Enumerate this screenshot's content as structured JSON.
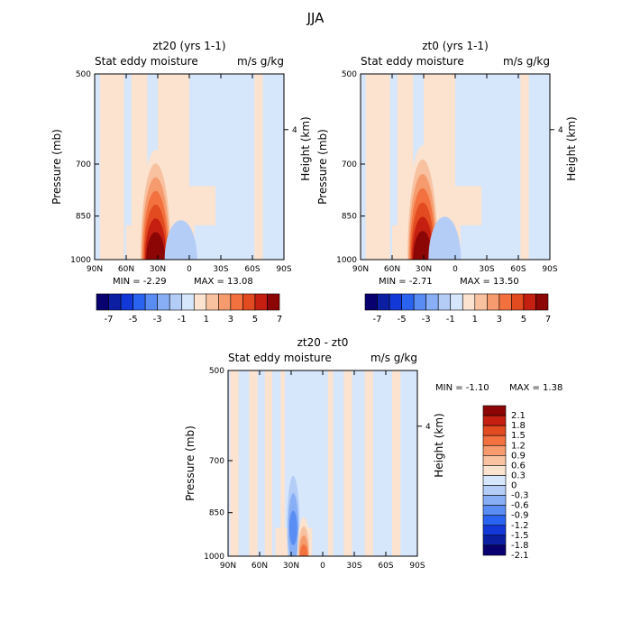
{
  "figure_title": "JJA",
  "chart_data": [
    {
      "type": "heatmap",
      "title": "zt20 (yrs 1-1)",
      "variable": "Stat eddy moisture",
      "units": "m/s g/kg",
      "xlabel": "",
      "ylabel": "Pressure (mb)",
      "y2label": "Height (km)",
      "x_ticks": [
        "90N",
        "60N",
        "30N",
        "0",
        "30S",
        "60S",
        "90S"
      ],
      "x_range": [
        90,
        -90
      ],
      "y_ticks": [
        "500",
        "700",
        "850",
        "1000"
      ],
      "y_tick_values": [
        500,
        700,
        850,
        1000
      ],
      "y_range": [
        500,
        1000
      ],
      "y_scale": "log",
      "y2_ticks": [
        "4"
      ],
      "min_label": "MIN = -2.29",
      "max_label": "MAX = 13.08",
      "min": -2.29,
      "max": 13.08,
      "colorbar_labels": [
        "-7",
        "-5",
        "-3",
        "-1",
        "1",
        "3",
        "5",
        "7"
      ],
      "colorbar_orientation": "horizontal",
      "features": [
        {
          "lat": 32,
          "p_top": 700,
          "p_bottom": 1000,
          "value": 7.5,
          "note": "strong positive maximum near surface"
        },
        {
          "lat": 8,
          "p_top": 880,
          "p_bottom": 1000,
          "value": -1.2,
          "note": "weak negative near equator"
        }
      ]
    },
    {
      "type": "heatmap",
      "title": "zt0 (yrs 1-1)",
      "variable": "Stat eddy moisture",
      "units": "m/s g/kg",
      "xlabel": "",
      "ylabel": "Pressure (mb)",
      "y2label": "Height (km)",
      "x_ticks": [
        "90N",
        "60N",
        "30N",
        "0",
        "30S",
        "60S",
        "90S"
      ],
      "x_range": [
        90,
        -90
      ],
      "y_ticks": [
        "500",
        "700",
        "850",
        "1000"
      ],
      "y_tick_values": [
        500,
        700,
        850,
        1000
      ],
      "y_range": [
        500,
        1000
      ],
      "y_scale": "log",
      "y2_ticks": [
        "4"
      ],
      "min_label": "MIN = -2.71",
      "max_label": "MAX = 13.50",
      "min": -2.71,
      "max": 13.5,
      "colorbar_labels": [
        "-7",
        "-5",
        "-3",
        "-1",
        "1",
        "3",
        "5",
        "7"
      ],
      "colorbar_orientation": "horizontal",
      "features": [
        {
          "lat": 31,
          "p_top": 690,
          "p_bottom": 1000,
          "value": 7.5,
          "note": "strong positive maximum near surface"
        },
        {
          "lat": 10,
          "p_top": 870,
          "p_bottom": 1000,
          "value": -1.4,
          "note": "weak negative near equator"
        }
      ]
    },
    {
      "type": "heatmap",
      "title": "zt20 - zt0",
      "variable": "Stat eddy moisture",
      "units": "m/s g/kg",
      "xlabel": "",
      "ylabel": "Pressure (mb)",
      "y2label": "Height (km)",
      "x_ticks": [
        "90N",
        "60N",
        "30N",
        "0",
        "30S",
        "60S",
        "90S"
      ],
      "x_range": [
        90,
        -90
      ],
      "y_ticks": [
        "500",
        "700",
        "850",
        "1000"
      ],
      "y_tick_values": [
        500,
        700,
        850,
        1000
      ],
      "y_range": [
        500,
        1000
      ],
      "y_scale": "log",
      "y2_ticks": [
        "4"
      ],
      "min_label": "MIN =  -1.10",
      "max_label": "MAX =   1.38",
      "min": -1.1,
      "max": 1.38,
      "colorbar_labels": [
        "2.1",
        "1.8",
        "1.5",
        "1.2",
        "0.9",
        "0.6",
        "0.3",
        "0",
        "-0.3",
        "-0.6",
        "-0.9",
        "-1.2",
        "-1.5",
        "-1.8",
        "-2.1"
      ],
      "colorbar_orientation": "vertical",
      "features": [
        {
          "lat": 28,
          "p_top": 760,
          "p_bottom": 900,
          "value": -1.0,
          "note": "negative column near 30N"
        },
        {
          "lat": 18,
          "p_top": 880,
          "p_bottom": 990,
          "value": 1.2,
          "note": "positive anomaly near surface"
        }
      ]
    }
  ],
  "colors": {
    "background": "#ffffff",
    "colorbar_fills": [
      "#08006e",
      "#0c1fa3",
      "#1238d8",
      "#2a63f0",
      "#5a8df4",
      "#88aff6",
      "#b4cdf7",
      "#d6e6fb",
      "#fbe3d0",
      "#f8c2a0",
      "#f59b6e",
      "#f2713f",
      "#e24a20",
      "#c41f10",
      "#8c0606"
    ]
  }
}
